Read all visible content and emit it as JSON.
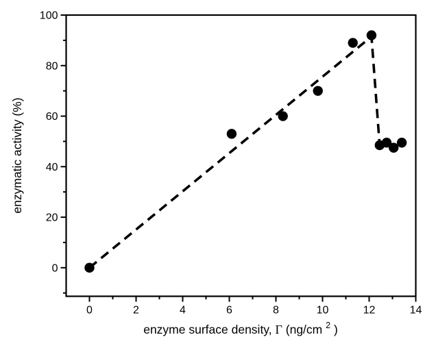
{
  "chart_data": {
    "type": "scatter",
    "title": "",
    "xlabel": "enzyme surface density, Γ (ng/cm²)",
    "ylabel": "enzymatic activity (%)",
    "xlabel_parts": {
      "text": "enzyme surface density, ",
      "symbol": "Γ",
      "unit_open": " (ng/cm",
      "unit_sup": "2",
      "unit_close": ")"
    },
    "xlim": [
      -1,
      14
    ],
    "ylim": [
      -11.3,
      100
    ],
    "x_major_ticks": [
      0,
      2,
      4,
      6,
      8,
      10,
      12,
      14
    ],
    "x_minor_ticks": [
      1,
      3,
      5,
      7,
      9,
      11,
      13
    ],
    "y_major_ticks": [
      0,
      20,
      40,
      60,
      80,
      100
    ],
    "y_minor_ticks": [
      -10,
      10,
      30,
      50,
      70,
      90
    ],
    "points": [
      [
        0,
        0
      ],
      [
        6.1,
        53
      ],
      [
        8.3,
        60
      ],
      [
        9.8,
        70
      ],
      [
        11.3,
        89
      ],
      [
        12.1,
        92
      ],
      [
        12.45,
        48.5
      ],
      [
        12.75,
        49.5
      ],
      [
        13.05,
        47.5
      ],
      [
        13.4,
        49.5
      ]
    ],
    "dash_line": [
      [
        0,
        0
      ],
      [
        12.1,
        91.5
      ],
      [
        12.45,
        48.5
      ]
    ],
    "line_style": "dashed",
    "marker": "filled-circle",
    "marker_color": "#000000",
    "line_color": "#000000",
    "axis_color": "#000000",
    "background": "#ffffff",
    "grid": false,
    "legend": null
  }
}
